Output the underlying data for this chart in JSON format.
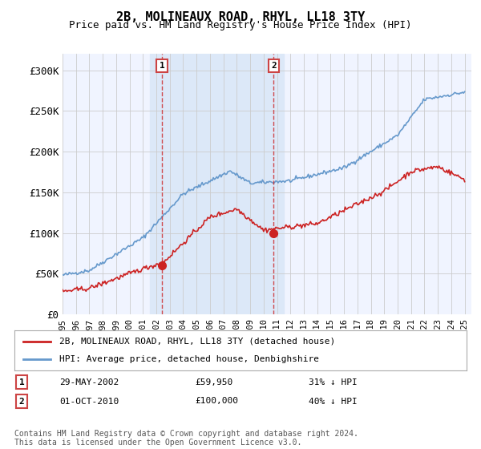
{
  "title": "2B, MOLINEAUX ROAD, RHYL, LL18 3TY",
  "subtitle": "Price paid vs. HM Land Registry's House Price Index (HPI)",
  "background_color": "#ffffff",
  "plot_bg_color": "#f0f4ff",
  "shaded_region_color": "#dce8f8",
  "grid_color": "#cccccc",
  "hpi_color": "#6699cc",
  "price_color": "#cc2222",
  "ylim": [
    0,
    320000
  ],
  "yticks": [
    0,
    50000,
    100000,
    150000,
    200000,
    250000,
    300000
  ],
  "ytick_labels": [
    "£0",
    "£50K",
    "£100K",
    "£150K",
    "£200K",
    "£250K",
    "£300K"
  ],
  "sale1_year": 2002.41,
  "sale1_price": 59950,
  "sale1_label": "1",
  "sale1_date": "29-MAY-2002",
  "sale1_pct": "31% ↓ HPI",
  "sale2_year": 2010.75,
  "sale2_price": 100000,
  "sale2_label": "2",
  "sale2_date": "01-OCT-2010",
  "sale2_pct": "40% ↓ HPI",
  "legend_line1": "2B, MOLINEAUX ROAD, RHYL, LL18 3TY (detached house)",
  "legend_line2": "HPI: Average price, detached house, Denbighshire",
  "footnote": "Contains HM Land Registry data © Crown copyright and database right 2024.\nThis data is licensed under the Open Government Licence v3.0.",
  "xmin": 1995,
  "xmax": 2025.5,
  "shaded_xmin": 2001.5,
  "shaded_xmax": 2011.5
}
